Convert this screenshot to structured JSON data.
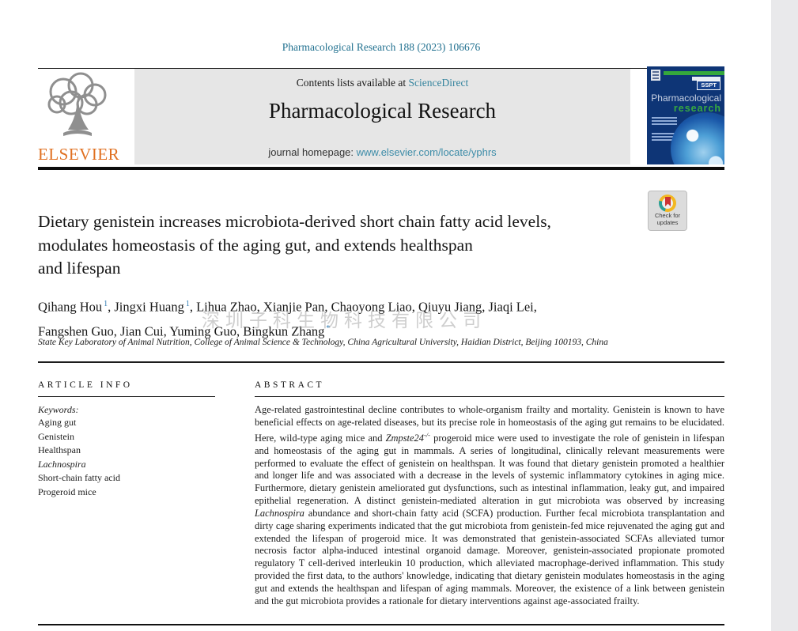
{
  "page": {
    "citation": "Pharmacological Research 188 (2023) 106676"
  },
  "header": {
    "publisher_logo_text": "ELSEVIER",
    "contents_line": {
      "prefix": "Contents lists available at ",
      "link": "ScienceDirect"
    },
    "journal_title": "Pharmacological Research",
    "homepage_line": {
      "prefix": "journal homepage: ",
      "url": "www.elsevier.com/locate/yphrs"
    },
    "cover": {
      "badge": "SSPT",
      "title_line1": "Pharmacological",
      "title_line2": "research"
    }
  },
  "badges": {
    "check_updates": {
      "line1": "Check for",
      "line2": "updates"
    }
  },
  "article": {
    "title_lines": [
      "Dietary genistein increases microbiota-derived short chain fatty acid levels,",
      "modulates homeostasis of the aging gut, and extends healthspan",
      "and lifespan"
    ],
    "author_lines": [
      [
        {
          "name": "Qihang Hou",
          "sup": "1"
        },
        {
          "name": "Jingxi Huang",
          "sup": "1"
        },
        {
          "name": "Lihua Zhao",
          "sup": ""
        },
        {
          "name": "Xianjie Pan",
          "sup": ""
        },
        {
          "name": "Chaoyong Liao",
          "sup": ""
        },
        {
          "name": "Qiuyu Jiang",
          "sup": ""
        },
        {
          "name": "Jiaqi Lei",
          "sup": ""
        }
      ],
      [
        {
          "name": "Fangshen Guo",
          "sup": ""
        },
        {
          "name": "Jian Cui",
          "sup": ""
        },
        {
          "name": "Yuming Guo",
          "sup": ""
        },
        {
          "name": "Bingkun Zhang",
          "sup": "*"
        }
      ]
    ],
    "watermark": "深圳子科生物科技有限公司",
    "affiliation": "State Key Laboratory of Animal Nutrition, College of Animal Science & Technology, China Agricultural University, Haidian District, Beijing 100193, China"
  },
  "article_info": {
    "heading": "ARTICLE INFO",
    "keywords_label": "Keywords:",
    "keywords": [
      {
        "text": "Aging gut",
        "italic": false
      },
      {
        "text": "Genistein",
        "italic": false
      },
      {
        "text": "Healthspan",
        "italic": false
      },
      {
        "text": "Lachnospira",
        "italic": true
      },
      {
        "text": "Short-chain fatty acid",
        "italic": false
      },
      {
        "text": "Progeroid mice",
        "italic": false
      }
    ]
  },
  "abstract": {
    "heading": "ABSTRACT",
    "segments": [
      {
        "text": "Age-related gastrointestinal decline contributes to whole-organism frailty and mortality. Genistein is known to have beneficial effects on age-related diseases, but its precise role in homeostasis of the aging gut remains to be elucidated. Here, wild-type aging mice and "
      },
      {
        "text": "Zmpste24",
        "italic": true
      },
      {
        "sup": "-/-",
        "italic": true
      },
      {
        "text": " progeroid mice were used to investigate the role of genistein in lifespan and homeostasis of the aging gut in mammals. A series of longitudinal, clinically relevant measurements were performed to evaluate the effect of genistein on healthspan. It was found that dietary genistein promoted a healthier and longer life and was associated with a decrease in the levels of systemic inflammatory cytokines in aging mice. Furthermore, dietary genistein ameliorated gut dysfunctions, such as intestinal inflammation, leaky gut, and impaired epithelial regeneration. A distinct genistein-mediated alteration in gut microbiota was observed by increasing "
      },
      {
        "text": "Lachnospira",
        "italic": true
      },
      {
        "text": " abundance and short-chain fatty acid (SCFA) production. Further fecal microbiota transplantation and dirty cage sharing experiments indicated that the gut microbiota from genistein-fed mice rejuvenated the aging gut and extended the lifespan of progeroid mice. It was demonstrated that genistein-associated SCFAs alleviated tumor necrosis factor alpha-induced intestinal organoid damage. Moreover, genistein-associated propionate promoted regulatory T cell-derived interleukin 10 production, which alleviated macrophage-derived inflammation. This study provided the first data, to the authors' knowledge, indicating that dietary genistein modulates homeostasis in the aging gut and extends the healthspan and lifespan of aging mammals. Moreover, the existence of a link between genistein and the gut microbiota provides a rationale for dietary interventions against age-associated frailty."
      }
    ]
  },
  "colors": {
    "link_teal": "#35849e",
    "citation_teal": "#20708f",
    "elsevier_orange": "#e07020",
    "cover_navy": "#0e3576",
    "cover_green": "#35a83c",
    "banner_gray": "#e6e6e6"
  }
}
